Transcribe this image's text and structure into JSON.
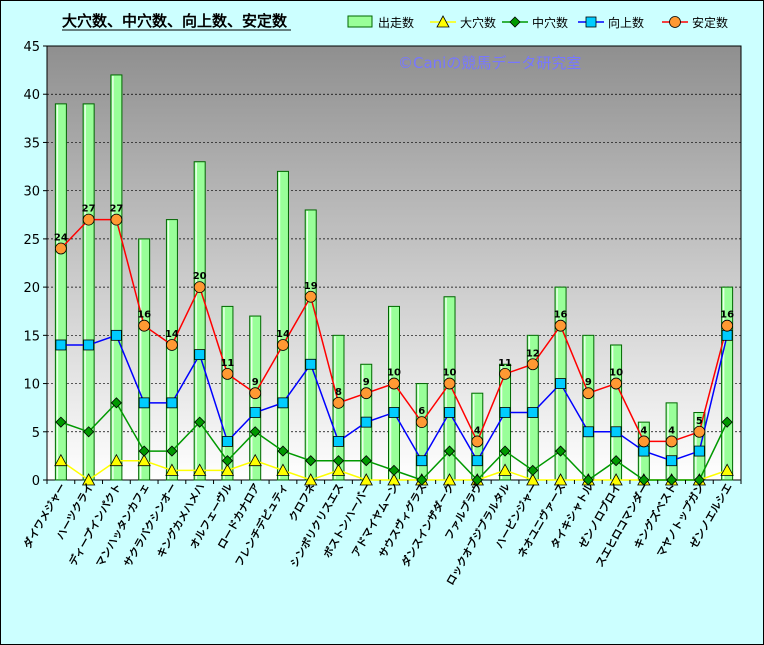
{
  "colors": {
    "frame_bg": "#ccffff",
    "plot_top": "#8f8f8f",
    "plot_bottom": "#ffffff",
    "bar_fill": "#99ff99",
    "bar_stroke": "#006600",
    "daiana": "#ffff00",
    "chuana": "#009900",
    "kojo": "#0000ff",
    "antei": "#ff0000",
    "antei_marker": "#ff9933",
    "kojo_marker": "#00ccff",
    "watermark": "#7777ff"
  },
  "watermark": "©Caniの競馬データ研究室",
  "chart_data": {
    "type": "bar",
    "title": "大穴数、中穴数、向上数、安定数",
    "ylim": [
      0,
      45
    ],
    "yticks": [
      0,
      5,
      10,
      15,
      20,
      25,
      30,
      35,
      40,
      45
    ],
    "grid": true,
    "legend_position": "top-right",
    "categories": [
      "ダイワメジャー",
      "ハーツクライ",
      "ディープインパクト",
      "マンハッタンカフェ",
      "サクラバクシンオー",
      "キングカメハメハ",
      "オルフェーヴル",
      "ロードカナロア",
      "フレンチデピュティ",
      "クロフネ",
      "シンボリクリスエス",
      "ボストンハーバー",
      "アドマイヤムーン",
      "サウスヴィグラス",
      "ダンスインザダーク",
      "ファルブラヴ",
      "ロックオブジブラルタル",
      "ハービンジャー",
      "ネオユニヴァース",
      "タイキシャトル",
      "ゼンノロブロイ",
      "スエヒロコマンダー",
      "キングズベスト",
      "マヤノトップガン",
      "ゼンノエルシエ"
    ],
    "series": [
      {
        "name": "出走数",
        "type": "bar",
        "values": [
          39,
          39,
          42,
          25,
          27,
          33,
          18,
          17,
          32,
          28,
          15,
          12,
          18,
          10,
          19,
          9,
          12,
          15,
          20,
          15,
          14,
          6,
          8,
          7,
          20
        ]
      },
      {
        "name": "大穴数",
        "type": "line",
        "values": [
          2,
          0,
          2,
          2,
          1,
          1,
          1,
          2,
          1,
          0,
          1,
          0,
          0,
          0,
          0,
          0,
          1,
          0,
          0,
          0,
          0,
          0,
          0,
          0,
          1
        ]
      },
      {
        "name": "中穴数",
        "type": "line",
        "values": [
          6,
          5,
          8,
          3,
          3,
          6,
          2,
          5,
          3,
          2,
          2,
          2,
          1,
          0,
          3,
          0,
          3,
          1,
          3,
          0,
          2,
          0,
          0,
          0,
          6
        ]
      },
      {
        "name": "向上数",
        "type": "line",
        "values": [
          14,
          14,
          15,
          8,
          8,
          13,
          4,
          7,
          8,
          12,
          4,
          6,
          7,
          2,
          7,
          2,
          7,
          7,
          10,
          5,
          5,
          3,
          2,
          3,
          15
        ]
      },
      {
        "name": "安定数",
        "type": "line",
        "values": [
          24,
          27,
          27,
          16,
          14,
          20,
          11,
          9,
          14,
          19,
          8,
          9,
          10,
          6,
          10,
          4,
          11,
          12,
          16,
          9,
          10,
          4,
          4,
          5,
          16
        ]
      }
    ]
  }
}
